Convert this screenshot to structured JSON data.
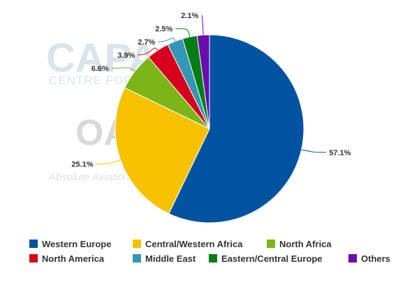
{
  "watermark": {
    "brand": "CAPA",
    "tagline": "CENTRE FOR AVIATION",
    "partner": "OAG",
    "partner_tagline": "Absolute Aviation Data"
  },
  "chart_data": {
    "type": "pie",
    "title": "",
    "start_angle_deg": 0,
    "direction": "clockwise",
    "legend_position": "bottom",
    "slices": [
      {
        "name": "Western Europe",
        "value": 57.1,
        "label": "57.1%",
        "color": "#0053a0"
      },
      {
        "name": "Central/Western Africa",
        "value": 25.1,
        "label": "25.1%",
        "color": "#f6c200"
      },
      {
        "name": "North Africa",
        "value": 6.6,
        "label": "6.6%",
        "color": "#7cb518"
      },
      {
        "name": "North America",
        "value": 3.9,
        "label": "3.9%",
        "color": "#d6001c"
      },
      {
        "name": "Middle East",
        "value": 2.7,
        "label": "2.7%",
        "color": "#3596b5"
      },
      {
        "name": "Eastern/Central Europe",
        "value": 2.5,
        "label": "2.5%",
        "color": "#007e14"
      },
      {
        "name": "Others",
        "value": 2.1,
        "label": "2.1%",
        "color": "#6a0dad"
      }
    ]
  }
}
